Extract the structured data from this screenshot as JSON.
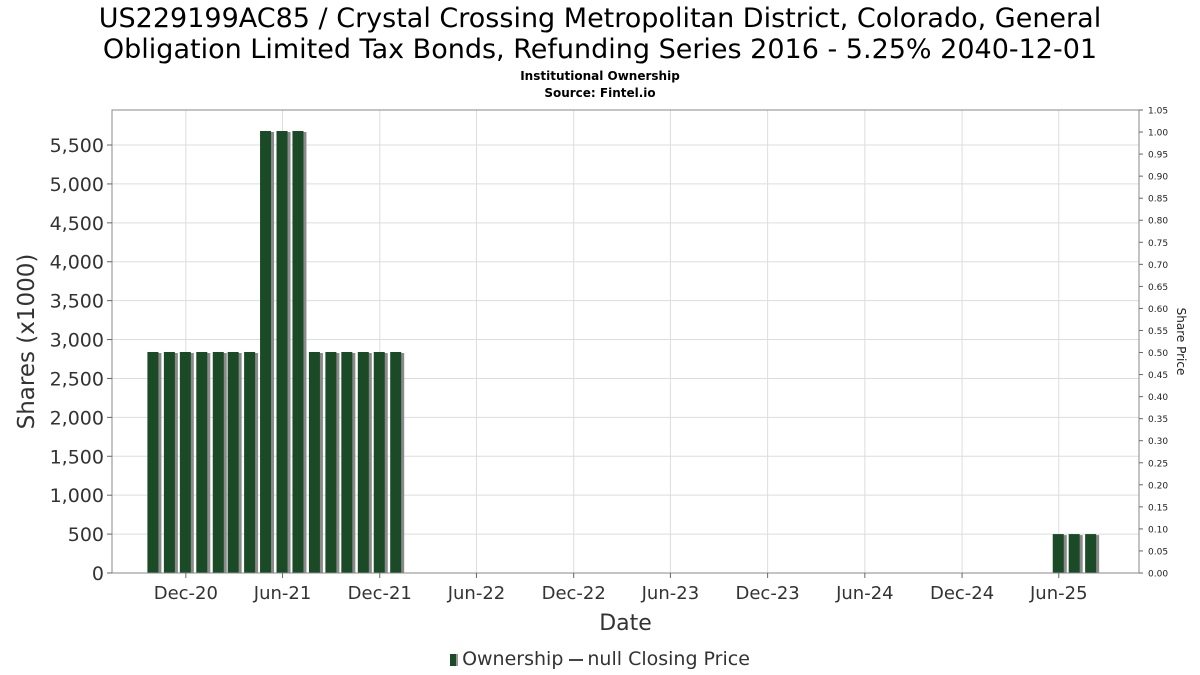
{
  "title_line1": "US229199AC85 / Crystal Crossing Metropolitan District, Colorado, General",
  "title_line2": "Obligation Limited Tax Bonds, Refunding Series 2016 - 5.25% 2040-12-01",
  "subtitle_line1": "Institutional Ownership",
  "subtitle_line2": "Source: Fintel.io",
  "legend": {
    "ownership": "Ownership",
    "closing_price": "null Closing Price"
  },
  "colors": {
    "bar": "#1a4a26",
    "bar_shadow": "#8a8a8a",
    "grid": "#dddddd",
    "frame": "#888888"
  },
  "chart_data": {
    "type": "bar",
    "xlabel": "Date",
    "ylabel": "Shares (x1000)",
    "y2label": "Share Price",
    "ylim": [
      0,
      5950
    ],
    "y2lim": [
      0,
      1.05
    ],
    "yticks": [
      0,
      500,
      1000,
      1500,
      2000,
      2500,
      3000,
      3500,
      4000,
      4500,
      5000,
      5500
    ],
    "yticklabels": [
      "0",
      "500",
      "1,000",
      "1,500",
      "2,000",
      "2,500",
      "3,000",
      "3,500",
      "4,000",
      "4,500",
      "5,000",
      "5,500"
    ],
    "y2ticks": [
      "0.00",
      "0.05",
      "0.10",
      "0.15",
      "0.20",
      "0.25",
      "0.30",
      "0.35",
      "0.40",
      "0.45",
      "0.50",
      "0.55",
      "0.60",
      "0.65",
      "0.70",
      "0.75",
      "0.80",
      "0.85",
      "0.90",
      "0.95",
      "1.00",
      "1.05"
    ],
    "xlim": [
      "2020-07-15",
      "2025-10-30"
    ],
    "xticks": [
      {
        "date": "2020-12-01",
        "label": "Dec-20"
      },
      {
        "date": "2021-06-01",
        "label": "Jun-21"
      },
      {
        "date": "2021-12-01",
        "label": "Dec-21"
      },
      {
        "date": "2022-06-01",
        "label": "Jun-22"
      },
      {
        "date": "2022-12-01",
        "label": "Dec-22"
      },
      {
        "date": "2023-06-01",
        "label": "Jun-23"
      },
      {
        "date": "2023-12-01",
        "label": "Dec-23"
      },
      {
        "date": "2024-06-01",
        "label": "Jun-24"
      },
      {
        "date": "2024-12-01",
        "label": "Dec-24"
      },
      {
        "date": "2025-06-01",
        "label": "Jun-25"
      }
    ],
    "grid": true,
    "legend_position": "bottom",
    "series": [
      {
        "name": "Ownership",
        "x": [
          "2020-09-30",
          "2020-10-31",
          "2020-11-30",
          "2020-12-31",
          "2021-01-31",
          "2021-02-28",
          "2021-03-31",
          "2021-04-30",
          "2021-05-31",
          "2021-06-30",
          "2021-07-31",
          "2021-08-31",
          "2021-09-30",
          "2021-10-31",
          "2021-11-30",
          "2021-12-31",
          "2025-05-31",
          "2025-06-30",
          "2025-07-31"
        ],
        "values": [
          2840,
          2840,
          2840,
          2840,
          2840,
          2840,
          2840,
          5680,
          5680,
          5680,
          2840,
          2840,
          2840,
          2840,
          2840,
          2840,
          500,
          500,
          500
        ]
      }
    ]
  }
}
